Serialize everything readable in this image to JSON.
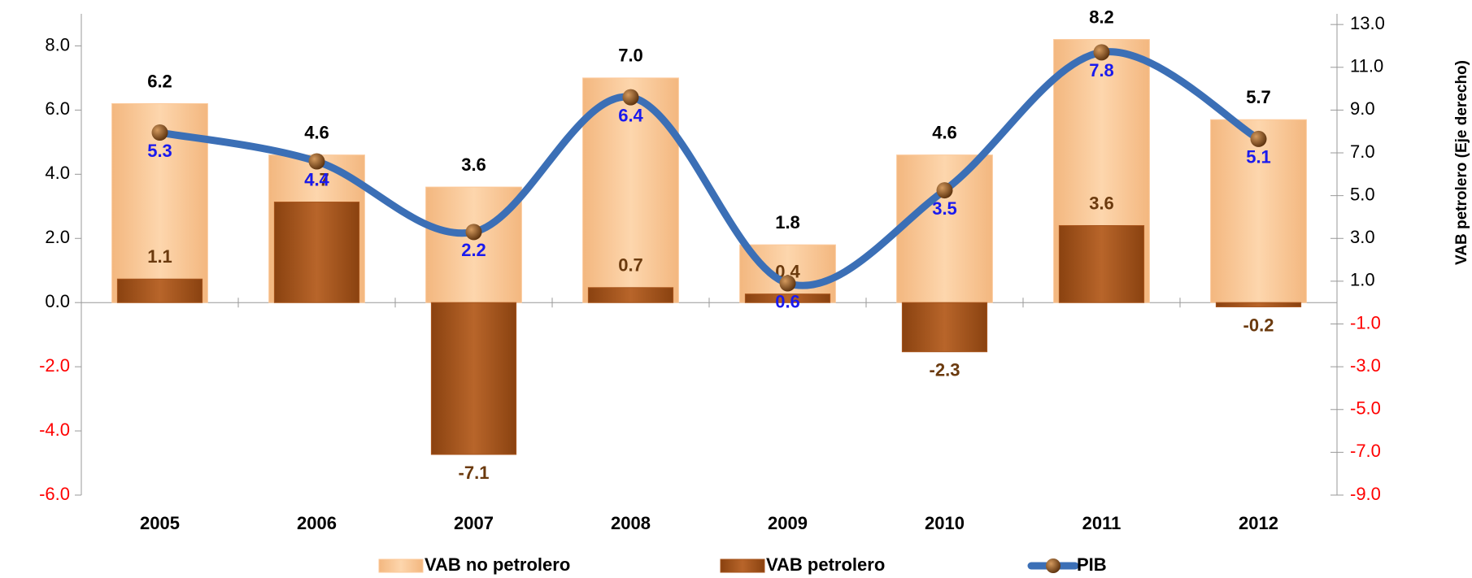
{
  "chart_data": {
    "type": "bar-line",
    "categories": [
      "2005",
      "2006",
      "2007",
      "2008",
      "2009",
      "2010",
      "2011",
      "2012"
    ],
    "y2_title": "VAB petrolero (Eje derecho)",
    "ylim": [
      -6,
      9
    ],
    "yticks": [
      {
        "value": -6,
        "label": "-6.0"
      },
      {
        "value": -4,
        "label": "-4.0"
      },
      {
        "value": -2,
        "label": "-2.0"
      },
      {
        "value": 0,
        "label": "0.0"
      },
      {
        "value": 2,
        "label": "2.0"
      },
      {
        "value": 4,
        "label": "4.0"
      },
      {
        "value": 6,
        "label": "6.0"
      },
      {
        "value": 8,
        "label": "8.0"
      }
    ],
    "y2lim": [
      -9,
      13.5
    ],
    "y2ticks": [
      {
        "value": -9,
        "label": "-9.0"
      },
      {
        "value": -7,
        "label": "-7.0"
      },
      {
        "value": -5,
        "label": "-5.0"
      },
      {
        "value": -3,
        "label": "-3.0"
      },
      {
        "value": -1,
        "label": "-1.0"
      },
      {
        "value": 1,
        "label": "1.0"
      },
      {
        "value": 3,
        "label": "3.0"
      },
      {
        "value": 5,
        "label": "5.0"
      },
      {
        "value": 7,
        "label": "7.0"
      },
      {
        "value": 9,
        "label": "9.0"
      },
      {
        "value": 11,
        "label": "11.0"
      },
      {
        "value": 13,
        "label": "13.0"
      }
    ],
    "negative_tick_color": "#ff0000",
    "series": [
      {
        "name": "VAB no petrolero",
        "kind": "bar",
        "color": "#fcc99a",
        "label_color": "#000000",
        "values": [
          6.2,
          4.6,
          3.6,
          7.0,
          1.8,
          4.6,
          8.2,
          5.7
        ],
        "value_labels": [
          "6.2",
          "4.6",
          "3.6",
          "7.0",
          "1.8",
          "4.6",
          "8.2",
          "5.7"
        ]
      },
      {
        "name": "VAB petrolero",
        "kind": "bar",
        "axis": "y2",
        "color": "#a8551c",
        "label_color": "#6b3a0e",
        "values": [
          1.1,
          4.7,
          -7.1,
          0.7,
          0.4,
          -2.3,
          3.6,
          -0.2
        ],
        "value_labels": [
          "1.1",
          "4.7",
          "-7.1",
          "0.7",
          "0.4",
          "-2.3",
          "3.6",
          "-0.2"
        ]
      },
      {
        "name": "PIB",
        "kind": "line",
        "color": "#3b6fb6",
        "marker_color": "#7a4414",
        "label_color": "#1a1aee",
        "values": [
          5.3,
          4.4,
          2.2,
          6.4,
          0.6,
          3.5,
          7.8,
          5.1
        ],
        "value_labels": [
          "5.3",
          "4.4",
          "2.2",
          "6.4",
          "0.6",
          "3.5",
          "7.8",
          "5.1"
        ]
      }
    ]
  }
}
